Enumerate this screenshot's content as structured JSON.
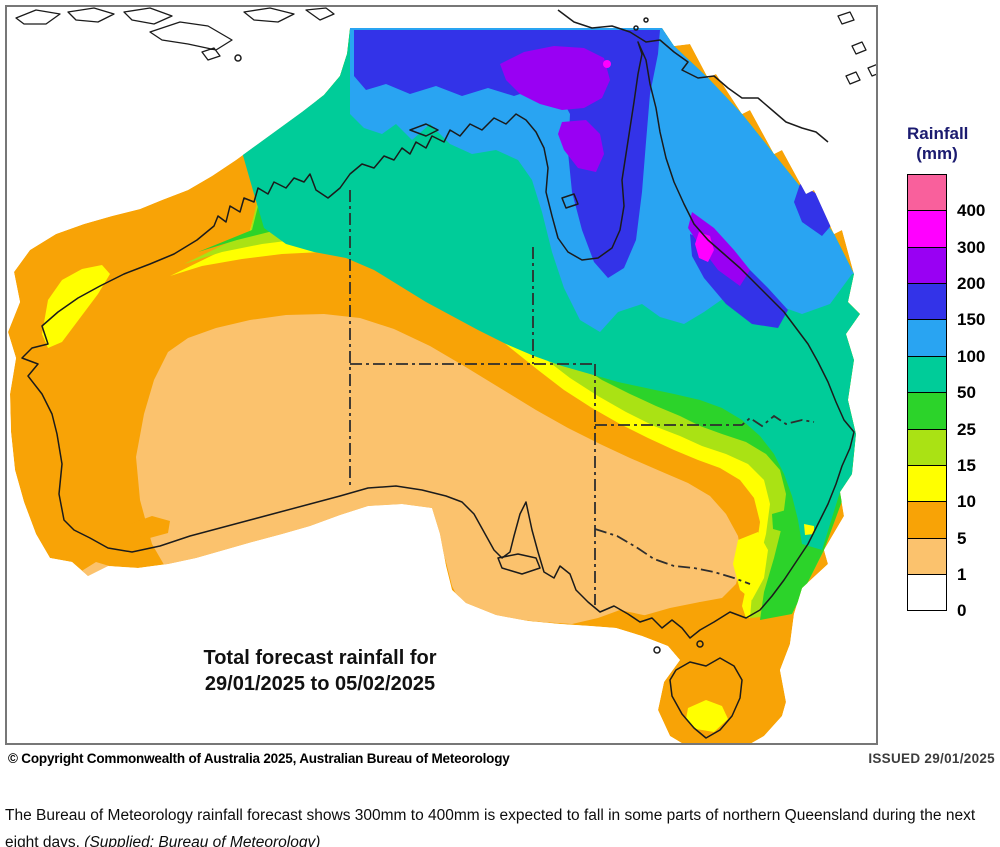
{
  "map_title": {
    "line1": "Total forecast rainfall for",
    "line2": "29/01/2025 to 05/02/2025"
  },
  "legend": {
    "title_line1": "Rainfall",
    "title_line2": "(mm)",
    "entries": [
      {
        "label": "400",
        "color": "#F9609C"
      },
      {
        "label": "300",
        "color": "#FF00FF"
      },
      {
        "label": "200",
        "color": "#9900F3"
      },
      {
        "label": "150",
        "color": "#3333E8"
      },
      {
        "label": "100",
        "color": "#29A4F2"
      },
      {
        "label": "50",
        "color": "#00CC99"
      },
      {
        "label": "25",
        "color": "#2CD32A"
      },
      {
        "label": "15",
        "color": "#AAE214"
      },
      {
        "label": "10",
        "color": "#FFFF00"
      },
      {
        "label": "5",
        "color": "#F8A306"
      },
      {
        "label": "1",
        "color": "#FBC26D"
      },
      {
        "label": "0",
        "color": "#FFFFFF"
      }
    ]
  },
  "map": {
    "region": "Australia",
    "band_colors": {
      "rain_1_5": "#FBC26D",
      "rain_5_10": "#F8A306",
      "rain_10_15": "#FFFF00",
      "rain_15_25": "#AAE214",
      "rain_25_50": "#2CD32A",
      "rain_50_100": "#00CC99",
      "rain_100_150": "#29A4F2",
      "rain_150_200": "#3333E8",
      "rain_200_300": "#9900F3",
      "rain_300_400": "#FF00FF",
      "rain_over_400": "#F9609C"
    }
  },
  "footer": {
    "copyright": "© Copyright Commonwealth of Australia 2025, Australian Bureau of Meteorology",
    "issued": "ISSUED 29/01/2025"
  },
  "caption": {
    "text": "The Bureau of Meteorology rainfall forecast shows 300mm to 400mm is expected to fall in some parts of northern Queensland during the next eight days. ",
    "credit": "(Supplied: Bureau of Meteorology)"
  }
}
